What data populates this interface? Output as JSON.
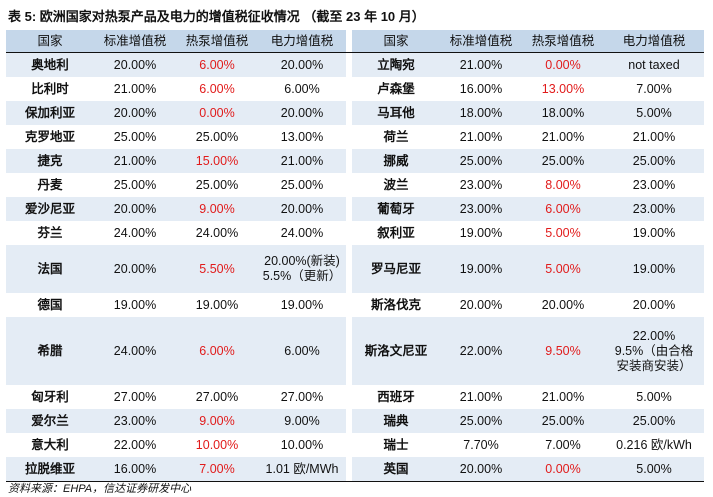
{
  "title": "表 5: 欧洲国家对热泵产品及电力的增值税征收情况 （截至 23 年 10 月）",
  "headers": [
    "国家",
    "标准增值税",
    "热泵增值税",
    "电力增值税"
  ],
  "accent_red": "#e11b1b",
  "header_bg": "#c5d7ea",
  "shade_bg": "#e4ecf5",
  "left": [
    {
      "name": "奥地利",
      "std": "20.00%",
      "hp": "6.00%",
      "hp_red": true,
      "elec": "20.00%"
    },
    {
      "name": "比利时",
      "std": "21.00%",
      "hp": "6.00%",
      "hp_red": true,
      "elec": "6.00%"
    },
    {
      "name": "保加利亚",
      "std": "20.00%",
      "hp": "0.00%",
      "hp_red": true,
      "elec": "20.00%"
    },
    {
      "name": "克罗地亚",
      "std": "25.00%",
      "hp": "25.00%",
      "hp_red": false,
      "elec": "13.00%"
    },
    {
      "name": "捷克",
      "std": "21.00%",
      "hp": "15.00%",
      "hp_red": true,
      "elec": "21.00%"
    },
    {
      "name": "丹麦",
      "std": "25.00%",
      "hp": "25.00%",
      "hp_red": false,
      "elec": "25.00%"
    },
    {
      "name": "爱沙尼亚",
      "std": "20.00%",
      "hp": "9.00%",
      "hp_red": true,
      "elec": "20.00%"
    },
    {
      "name": "芬兰",
      "std": "24.00%",
      "hp": "24.00%",
      "hp_red": false,
      "elec": "24.00%"
    },
    {
      "name": "法国",
      "std": "20.00%",
      "hp": "5.50%",
      "hp_red": true,
      "elec": "20.00%(新装)\n5.5%（更新）"
    },
    {
      "name": "德国",
      "std": "19.00%",
      "hp": "19.00%",
      "hp_red": false,
      "elec": "19.00%"
    },
    {
      "name": "希腊",
      "std": "24.00%",
      "hp": "6.00%",
      "hp_red": true,
      "elec": "6.00%"
    },
    {
      "name": "匈牙利",
      "std": "27.00%",
      "hp": "27.00%",
      "hp_red": false,
      "elec": "27.00%"
    },
    {
      "name": "爱尔兰",
      "std": "23.00%",
      "hp": "9.00%",
      "hp_red": true,
      "elec": "9.00%"
    },
    {
      "name": "意大利",
      "std": "22.00%",
      "hp": "10.00%",
      "hp_red": true,
      "elec": "10.00%"
    },
    {
      "name": "拉脱维亚",
      "std": "16.00%",
      "hp": "7.00%",
      "hp_red": true,
      "elec": "1.01 欧/MWh"
    }
  ],
  "right": [
    {
      "name": "立陶宛",
      "std": "21.00%",
      "hp": "0.00%",
      "hp_red": true,
      "elec": "not taxed"
    },
    {
      "name": "卢森堡",
      "std": "16.00%",
      "hp": "13.00%",
      "hp_red": true,
      "elec": "7.00%"
    },
    {
      "name": "马耳他",
      "std": "18.00%",
      "hp": "18.00%",
      "hp_red": false,
      "elec": "5.00%"
    },
    {
      "name": "荷兰",
      "std": "21.00%",
      "hp": "21.00%",
      "hp_red": false,
      "elec": "21.00%"
    },
    {
      "name": "挪威",
      "std": "25.00%",
      "hp": "25.00%",
      "hp_red": false,
      "elec": "25.00%"
    },
    {
      "name": "波兰",
      "std": "23.00%",
      "hp": "8.00%",
      "hp_red": true,
      "elec": "23.00%"
    },
    {
      "name": "葡萄牙",
      "std": "23.00%",
      "hp": "6.00%",
      "hp_red": true,
      "elec": "23.00%"
    },
    {
      "name": "叙利亚",
      "std": "19.00%",
      "hp": "5.00%",
      "hp_red": true,
      "elec": "19.00%"
    },
    {
      "name": "罗马尼亚",
      "std": "19.00%",
      "hp": "5.00%",
      "hp_red": true,
      "elec": "19.00%"
    },
    {
      "name": "斯洛伐克",
      "std": "20.00%",
      "hp": "20.00%",
      "hp_red": false,
      "elec": "20.00%"
    },
    {
      "name": "斯洛文尼亚",
      "std": "22.00%",
      "hp": "9.50%",
      "hp_red": true,
      "elec": "22.00%\n9.5%（由合格\n安装商安装）"
    },
    {
      "name": "西班牙",
      "std": "21.00%",
      "hp": "21.00%",
      "hp_red": false,
      "elec": "5.00%"
    },
    {
      "name": "瑞典",
      "std": "25.00%",
      "hp": "25.00%",
      "hp_red": false,
      "elec": "25.00%"
    },
    {
      "name": "瑞士",
      "std": "7.70%",
      "hp": "7.00%",
      "hp_red": false,
      "elec": "0.216 欧/kWh"
    },
    {
      "name": "英国",
      "std": "20.00%",
      "hp": "0.00%",
      "hp_red": true,
      "elec": "5.00%"
    }
  ],
  "source": "资料来源：EHPA，信达证券研发中心"
}
